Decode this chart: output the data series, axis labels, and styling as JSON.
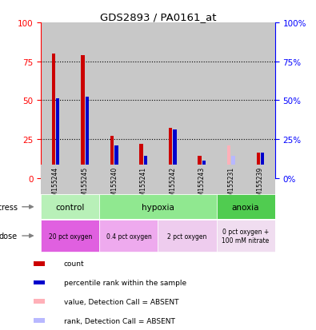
{
  "title": "GDS2893 / PA0161_at",
  "samples": [
    "GSM155244",
    "GSM155245",
    "GSM155240",
    "GSM155241",
    "GSM155242",
    "GSM155243",
    "GSM155231",
    "GSM155239"
  ],
  "red_values": [
    80,
    79,
    27,
    22,
    32,
    14,
    0,
    16
  ],
  "blue_values": [
    51,
    52,
    21,
    14,
    31,
    11,
    0,
    16
  ],
  "pink_values": [
    0,
    0,
    0,
    0,
    0,
    0,
    21,
    0
  ],
  "light_blue_values": [
    0,
    0,
    0,
    0,
    0,
    0,
    14,
    0
  ],
  "absent_flags": [
    false,
    false,
    false,
    false,
    false,
    false,
    true,
    false
  ],
  "stress_groups": [
    {
      "label": "control",
      "start": 0,
      "end": 2,
      "color": "#b8f0b8"
    },
    {
      "label": "hypoxia",
      "start": 2,
      "end": 6,
      "color": "#90e890"
    },
    {
      "label": "anoxia",
      "start": 6,
      "end": 8,
      "color": "#50cc50"
    }
  ],
  "dose_groups": [
    {
      "label": "20 pct oxygen",
      "start": 0,
      "end": 2,
      "color": "#e060e0"
    },
    {
      "label": "0.4 pct oxygen",
      "start": 2,
      "end": 4,
      "color": "#eeaaee"
    },
    {
      "label": "2 pct oxygen",
      "start": 4,
      "end": 6,
      "color": "#eeccee"
    },
    {
      "label": "0 pct oxygen +\n100 mM nitrate",
      "start": 6,
      "end": 8,
      "color": "#f0ddf0"
    }
  ],
  "ylim": [
    0,
    100
  ],
  "yticks": [
    0,
    25,
    50,
    75,
    100
  ],
  "bar_width": 0.12,
  "red_color": "#cc0000",
  "blue_color": "#0000cc",
  "pink_color": "#ffb0b8",
  "light_blue_color": "#b8b8ff",
  "sample_bg_color": "#c8c8c8",
  "legend_items": [
    {
      "label": "count",
      "color": "#cc0000"
    },
    {
      "label": "percentile rank within the sample",
      "color": "#0000cc"
    },
    {
      "label": "value, Detection Call = ABSENT",
      "color": "#ffb0b8"
    },
    {
      "label": "rank, Detection Call = ABSENT",
      "color": "#b8b8ff"
    }
  ]
}
